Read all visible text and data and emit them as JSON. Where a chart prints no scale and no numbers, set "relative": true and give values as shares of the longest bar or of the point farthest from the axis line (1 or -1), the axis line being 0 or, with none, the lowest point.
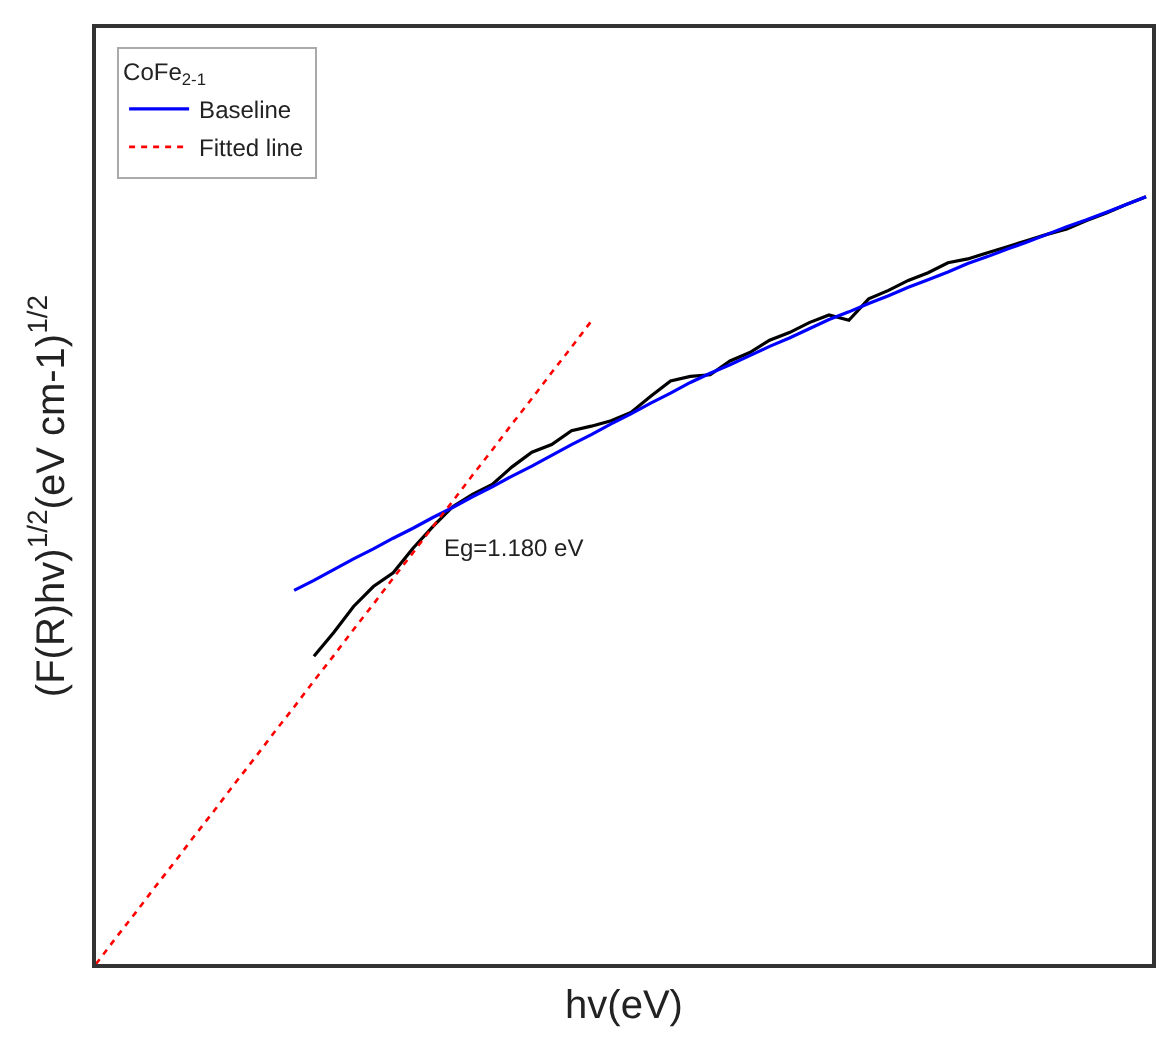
{
  "chart_data": {
    "type": "line",
    "relative": true,
    "xlabel": "hv(eV)",
    "ylabel": "(F(R)hv)$^{1/2}$(eV cm-1)$^{1/2}$",
    "legend_title": "CoFe$_{2-1}$",
    "legend": "top left",
    "marker": "none",
    "categories": [
      null,
      null,
      null,
      null,
      null,
      null,
      null,
      null,
      null,
      null,
      null,
      null,
      null,
      null,
      null,
      null,
      null,
      null,
      null,
      null,
      null,
      null,
      null,
      null,
      null,
      null,
      null,
      null,
      null,
      null,
      null,
      null,
      null,
      null,
      null,
      null,
      null,
      null,
      null,
      null,
      null,
      null,
      null,
      null,
      null,
      null,
      null,
      null,
      null,
      null,
      null,
      null,
      null,
      null
    ],
    "series": [
      {
        "color": "#000000",
        "line_style": "solid",
        "values": [
          null,
          null,
          null,
          null,
          null,
          null,
          null,
          null,
          null,
          null,
          null,
          0.401,
          0.432,
          0.466,
          0.492,
          0.51,
          0.542,
          0.57,
          0.596,
          0.612,
          0.625,
          0.648,
          0.667,
          0.677,
          0.695,
          0.701,
          0.708,
          0.719,
          0.74,
          0.76,
          0.766,
          0.768,
          0.786,
          0.797,
          0.813,
          0.823,
          0.836,
          0.846,
          0.839,
          0.867,
          0.878,
          0.891,
          0.901,
          0.914,
          0.919,
          0.927,
          0.935,
          0.943,
          0.951,
          0.958,
          0.969,
          0.979,
          0.99,
          1.0
        ]
      },
      {
        "name": "Baseline",
        "color": "#0000ff",
        "line_style": "solid",
        "values": [
          null,
          null,
          null,
          null,
          null,
          null,
          null,
          null,
          null,
          null,
          0.487,
          0.5,
          0.514,
          0.528,
          0.541,
          0.555,
          0.568,
          0.582,
          0.595,
          0.609,
          0.622,
          0.636,
          0.649,
          0.663,
          0.677,
          0.69,
          0.704,
          0.717,
          0.731,
          0.744,
          0.758,
          0.77,
          0.781,
          0.793,
          0.805,
          0.816,
          0.828,
          0.84,
          0.85,
          0.861,
          0.871,
          0.882,
          0.892,
          0.902,
          0.913,
          0.922,
          0.932,
          0.941,
          0.951,
          0.961,
          0.97,
          0.98,
          0.99,
          1.0
        ]
      },
      {
        "name": "Fitted line",
        "color": "#ff0000",
        "line_style": "dotted",
        "values": [
          0,
          0.034,
          0.067,
          0.101,
          0.134,
          0.168,
          0.201,
          0.235,
          0.268,
          0.302,
          0.335,
          0.369,
          0.402,
          0.436,
          0.469,
          0.503,
          0.536,
          0.57,
          0.603,
          0.637,
          0.67,
          0.704,
          0.737,
          0.771,
          0.804,
          0.838,
          null,
          null,
          null,
          null,
          null,
          null,
          null,
          null,
          null,
          null,
          null,
          null,
          null,
          null,
          null,
          null,
          null,
          null,
          null,
          null,
          null,
          null,
          null,
          null,
          null,
          null,
          null,
          null
        ]
      }
    ],
    "annotations": [
      "Eg=1.180 eV"
    ]
  }
}
